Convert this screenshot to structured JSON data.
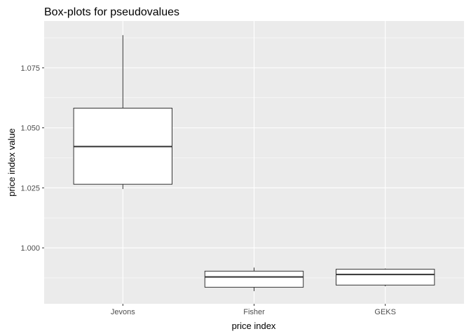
{
  "chart_data": {
    "type": "boxplot",
    "title": "Box-plots for pseudovalues",
    "xlabel": "price index",
    "ylabel": "price index value",
    "categories": [
      "Jevons",
      "Fisher",
      "GEKS"
    ],
    "boxes": [
      {
        "name": "Jevons",
        "whisker_low": 1.0245,
        "q1": 1.0265,
        "median": 1.0422,
        "q3": 1.0582,
        "whisker_high": 1.0886
      },
      {
        "name": "Fisher",
        "whisker_low": 0.982,
        "q1": 0.9836,
        "median": 0.9879,
        "q3": 0.9903,
        "whisker_high": 0.9918
      },
      {
        "name": "GEKS",
        "whisker_low": 0.984,
        "q1": 0.9845,
        "median": 0.9889,
        "q3": 0.9911,
        "whisker_high": 0.9914
      }
    ],
    "yticks": [
      1.0,
      1.025,
      1.05,
      1.075
    ],
    "ytick_labels": [
      "1.000",
      "1.025",
      "1.050",
      "1.075"
    ],
    "ylim": [
      0.9767,
      1.0945
    ],
    "grid": true,
    "colors": {
      "panel": "#ebebeb",
      "grid": "#ffffff",
      "box_fill": "#ffffff",
      "box_line": "#333333",
      "text": "#4d4d4d"
    }
  }
}
